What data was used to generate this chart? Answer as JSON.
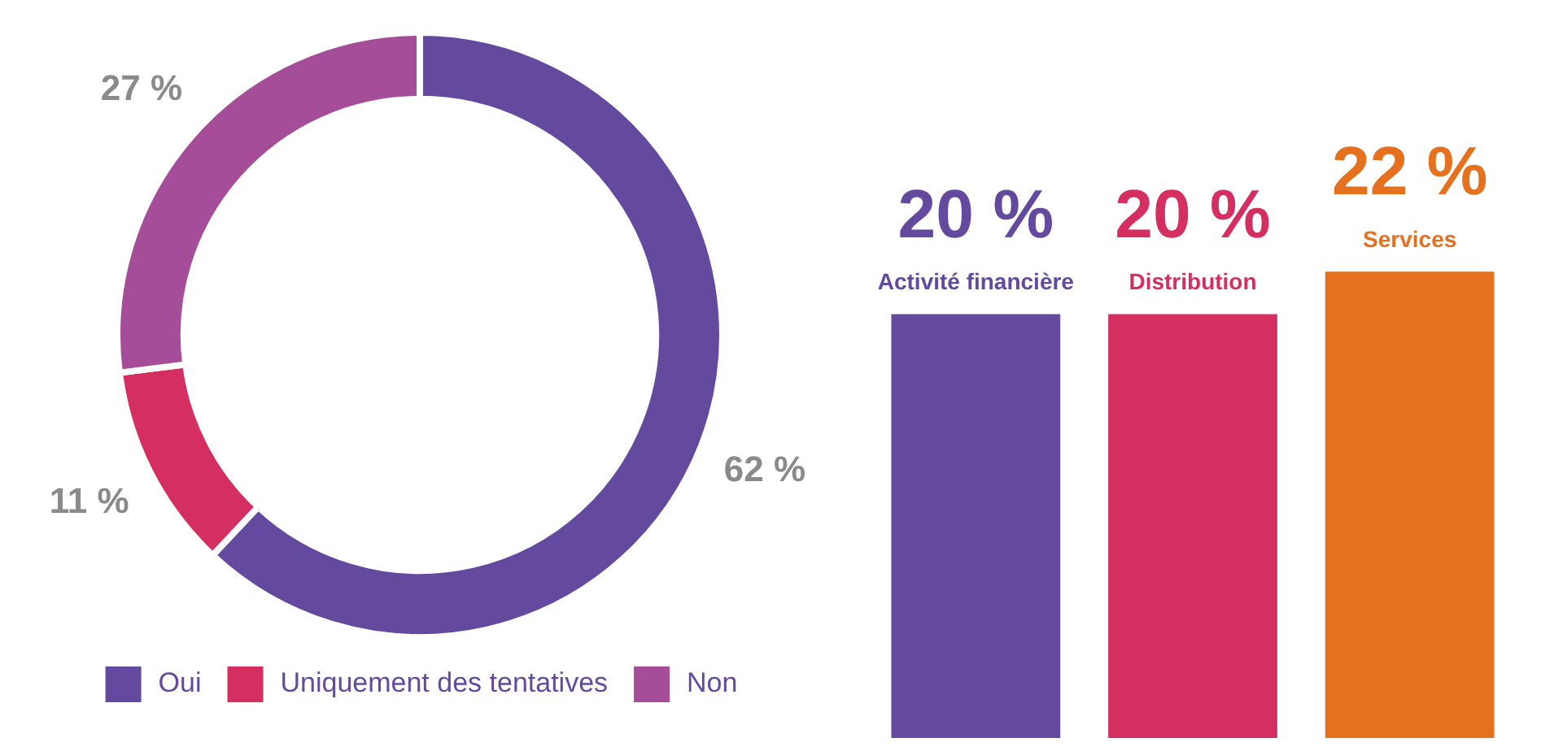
{
  "chart_data": [
    {
      "type": "donut",
      "categories": [
        "Oui",
        "Uniquement des tentatives",
        "Non"
      ],
      "values": [
        62,
        11,
        27
      ],
      "colors": [
        "#634a9e",
        "#d42f60",
        "#a64d9a"
      ],
      "value_labels": [
        "62 %",
        "11 %",
        "27 %"
      ],
      "legend": "bottom"
    },
    {
      "type": "bar",
      "categories": [
        "Activité financière",
        "Distribution",
        "Services"
      ],
      "values": [
        20,
        20,
        22
      ],
      "colors": [
        "#634a9e",
        "#d42f60",
        "#e5711f"
      ],
      "value_labels": [
        "20 %",
        "20 %",
        "22 %"
      ],
      "legend": false
    }
  ]
}
